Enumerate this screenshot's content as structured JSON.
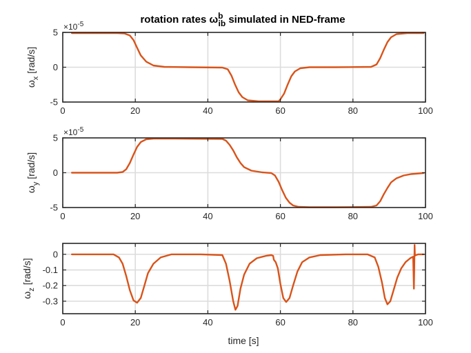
{
  "chart_data": {
    "type": "line",
    "title": "rotation rates ω",
    "title_sup": "b",
    "title_sub": "ib",
    "title_suffix": " simulated in NED-frame",
    "x_label": "time [s]",
    "line_color": "#d95319",
    "subplots": [
      {
        "name": "omega-x",
        "ylabel_main": "ω",
        "ylabel_sub": "x",
        "ylabel_unit": " [rad/s]",
        "exponent_label": "×10",
        "exponent_power": "-5",
        "xlim": [
          0,
          100
        ],
        "ylim": [
          -5,
          5
        ],
        "xticks": [
          0,
          20,
          40,
          60,
          80,
          100
        ],
        "xtick_labels": [
          "0",
          "20",
          "40",
          "60",
          "80",
          "100"
        ],
        "yticks": [
          -5,
          0,
          5
        ],
        "ytick_labels": [
          "-5",
          "0",
          "5"
        ],
        "x": [
          2.5,
          15,
          17,
          18.5,
          19.5,
          20.5,
          21.5,
          23,
          25,
          28,
          35,
          44,
          45.5,
          46.5,
          47.5,
          48.5,
          49.5,
          51,
          54,
          59.5,
          60,
          61,
          62,
          63,
          64,
          65.5,
          68,
          75,
          85,
          86.5,
          87.5,
          88.5,
          89.5,
          90.5,
          92,
          95,
          99.5
        ],
        "y": [
          4.9,
          4.9,
          4.85,
          4.55,
          3.9,
          2.8,
          1.7,
          0.8,
          0.25,
          0.05,
          0.0,
          -0.05,
          -0.3,
          -1.2,
          -2.5,
          -3.6,
          -4.3,
          -4.75,
          -4.9,
          -4.9,
          -4.6,
          -3.8,
          -2.5,
          -1.3,
          -0.6,
          -0.15,
          0.0,
          0.0,
          0.05,
          0.4,
          1.3,
          2.5,
          3.6,
          4.3,
          4.75,
          4.9,
          4.9
        ]
      },
      {
        "name": "omega-y",
        "ylabel_main": "ω",
        "ylabel_sub": "y",
        "ylabel_unit": " [rad/s]",
        "exponent_label": "×10",
        "exponent_power": "-5",
        "xlim": [
          0,
          100
        ],
        "ylim": [
          -5,
          5
        ],
        "xticks": [
          0,
          20,
          40,
          60,
          80,
          100
        ],
        "xtick_labels": [
          "0",
          "20",
          "40",
          "60",
          "80",
          "100"
        ],
        "yticks": [
          -5,
          0,
          5
        ],
        "ytick_labels": [
          "-5",
          "0",
          "5"
        ],
        "x": [
          2.5,
          15,
          16.5,
          17.5,
          18.5,
          19.5,
          20.5,
          21.5,
          23,
          25,
          30,
          44,
          45,
          46,
          47,
          48,
          49,
          50,
          52,
          55,
          57.5,
          58.5,
          59.5,
          60.5,
          61.5,
          62.5,
          63.5,
          65,
          68,
          75,
          85,
          86.5,
          87.5,
          88.5,
          89.5,
          90.5,
          92,
          94,
          96,
          99.5
        ],
        "y": [
          0.0,
          0.0,
          0.1,
          0.5,
          1.4,
          2.6,
          3.7,
          4.4,
          4.8,
          4.9,
          4.9,
          4.85,
          4.6,
          4.0,
          3.2,
          2.2,
          1.4,
          0.8,
          0.3,
          0.05,
          -0.05,
          -0.4,
          -1.3,
          -2.5,
          -3.6,
          -4.3,
          -4.7,
          -4.9,
          -4.95,
          -4.95,
          -4.9,
          -4.7,
          -4.1,
          -3.1,
          -2.2,
          -1.4,
          -0.8,
          -0.4,
          -0.2,
          -0.05
        ]
      },
      {
        "name": "omega-z",
        "ylabel_main": "ω",
        "ylabel_sub": "z",
        "ylabel_unit": " [rad/s]",
        "xlim": [
          0,
          100
        ],
        "ylim": [
          -0.38,
          0.07
        ],
        "xticks": [
          0,
          20,
          40,
          60,
          80,
          100
        ],
        "xtick_labels": [
          "0",
          "20",
          "40",
          "60",
          "80",
          "100"
        ],
        "yticks": [
          0,
          -0.1,
          -0.2,
          -0.3
        ],
        "ytick_labels": [
          "0",
          "-0.1",
          "-0.2",
          "-0.3"
        ],
        "x": [
          2.5,
          14,
          15.5,
          16.5,
          17.5,
          18.5,
          19.5,
          20.5,
          21.5,
          22.5,
          23.5,
          25,
          27,
          30,
          38,
          44,
          45,
          46,
          47,
          47.6,
          48.2,
          49,
          50,
          51.5,
          53.5,
          56,
          57.5,
          58,
          58.2,
          58.7,
          59.3,
          60,
          60.8,
          61.6,
          62.5,
          63.5,
          64.7,
          66,
          68,
          71,
          78,
          84,
          86,
          87,
          88,
          88.8,
          89.5,
          90.3,
          91.2,
          92.2,
          93.3,
          94.5,
          95.8,
          96.6,
          96.8,
          96.9,
          97,
          97.1,
          97.2,
          97.4,
          98,
          99.5
        ],
        "y": [
          0.0,
          0.0,
          -0.02,
          -0.06,
          -0.14,
          -0.23,
          -0.295,
          -0.31,
          -0.28,
          -0.2,
          -0.12,
          -0.06,
          -0.02,
          0.0,
          0.0,
          -0.005,
          -0.06,
          -0.17,
          -0.3,
          -0.355,
          -0.33,
          -0.22,
          -0.13,
          -0.06,
          -0.025,
          -0.01,
          -0.005,
          -0.01,
          -0.035,
          -0.05,
          -0.09,
          -0.19,
          -0.28,
          -0.305,
          -0.28,
          -0.2,
          -0.11,
          -0.05,
          -0.02,
          -0.005,
          0.0,
          0.0,
          -0.02,
          -0.08,
          -0.18,
          -0.28,
          -0.32,
          -0.3,
          -0.23,
          -0.15,
          -0.09,
          -0.05,
          -0.025,
          -0.015,
          -0.22,
          -0.1,
          0.06,
          -0.01,
          -0.005,
          -0.005,
          0.0,
          0.0
        ]
      }
    ]
  }
}
